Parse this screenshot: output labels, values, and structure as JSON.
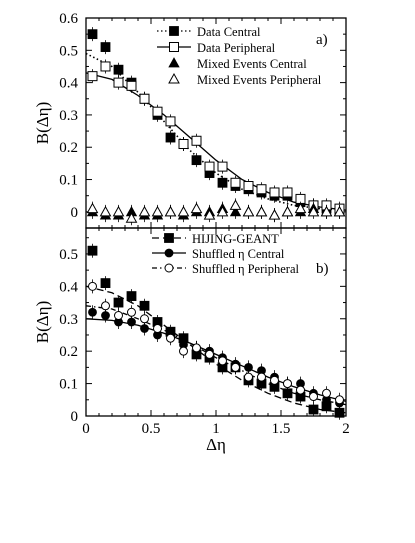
{
  "chart_data": [
    {
      "panel_label": "a)",
      "type": "scatter",
      "ylabel": "B(Δη)",
      "xlabel": "",
      "xlim": [
        0,
        2
      ],
      "ylim": [
        -0.05,
        0.6
      ],
      "x_ticks": [
        "0",
        "0.5",
        "1",
        "1.5",
        "2"
      ],
      "show_x_tick_labels": false,
      "y_ticks": [
        "0",
        "0.1",
        "0.2",
        "0.3",
        "0.4",
        "0.5",
        "0.6"
      ],
      "y_tick_values": [
        0,
        0.1,
        0.2,
        0.3,
        0.4,
        0.5,
        0.6
      ],
      "legend_position": "top-right",
      "series": [
        {
          "name": "Data Central",
          "marker": "square-filled",
          "line": "dotted",
          "x": [
            0.05,
            0.15,
            0.25,
            0.35,
            0.45,
            0.55,
            0.65,
            0.75,
            0.85,
            0.95,
            1.05,
            1.15,
            1.25,
            1.35,
            1.45,
            1.55,
            1.65,
            1.75,
            1.85,
            1.95
          ],
          "y": [
            0.55,
            0.51,
            0.44,
            0.4,
            0.35,
            0.3,
            0.23,
            0.21,
            0.16,
            0.12,
            0.09,
            0.08,
            0.07,
            0.06,
            0.05,
            0.05,
            0.03,
            0.02,
            0.01,
            0.005
          ],
          "fit_x": [
            0,
            0.2,
            0.4,
            0.6,
            0.8,
            1.0,
            1.2,
            1.4,
            1.6,
            1.8,
            2.0
          ],
          "fit_y": [
            0.49,
            0.45,
            0.37,
            0.28,
            0.19,
            0.12,
            0.07,
            0.04,
            0.02,
            0.01,
            0.005
          ]
        },
        {
          "name": "Data Peripheral",
          "marker": "square-open",
          "line": "solid",
          "x": [
            0.05,
            0.15,
            0.25,
            0.35,
            0.45,
            0.55,
            0.65,
            0.75,
            0.85,
            0.95,
            1.05,
            1.15,
            1.25,
            1.35,
            1.45,
            1.55,
            1.65,
            1.75,
            1.85,
            1.95
          ],
          "y": [
            0.42,
            0.45,
            0.4,
            0.39,
            0.35,
            0.31,
            0.28,
            0.21,
            0.22,
            0.14,
            0.14,
            0.09,
            0.08,
            0.07,
            0.06,
            0.06,
            0.04,
            0.02,
            0.02,
            0.01
          ],
          "fit_x": [
            0,
            0.2,
            0.4,
            0.6,
            0.8,
            1.0,
            1.2,
            1.4,
            1.6,
            1.8,
            2.0
          ],
          "fit_y": [
            0.43,
            0.41,
            0.36,
            0.3,
            0.23,
            0.16,
            0.1,
            0.06,
            0.03,
            0.015,
            0.005
          ]
        },
        {
          "name": "Mixed Events Central",
          "marker": "triangle-filled",
          "line": "none",
          "x": [
            0.05,
            0.15,
            0.25,
            0.35,
            0.45,
            0.55,
            0.65,
            0.75,
            0.85,
            0.95,
            1.05,
            1.15,
            1.25,
            1.35,
            1.45,
            1.55,
            1.65,
            1.75,
            1.85,
            1.95
          ],
          "y": [
            0.0,
            -0.01,
            -0.01,
            0.0,
            -0.01,
            -0.01,
            0.0,
            -0.01,
            0.0,
            0.0,
            0.01,
            0.0,
            0.0,
            0.0,
            -0.01,
            0.0,
            0.0,
            0.01,
            0.0,
            0.0
          ]
        },
        {
          "name": "Mixed Events Peripheral",
          "marker": "triangle-open",
          "line": "none",
          "x": [
            0.05,
            0.15,
            0.25,
            0.35,
            0.45,
            0.55,
            0.65,
            0.75,
            0.85,
            0.95,
            1.05,
            1.15,
            1.25,
            1.35,
            1.45,
            1.55,
            1.65,
            1.75,
            1.85,
            1.95
          ],
          "y": [
            0.01,
            0.0,
            0.0,
            -0.02,
            0.0,
            0.0,
            0.0,
            0.0,
            0.01,
            -0.01,
            0.0,
            0.02,
            0.0,
            0.0,
            -0.01,
            0.0,
            0.01,
            0.0,
            0.0,
            0.0
          ]
        }
      ]
    },
    {
      "panel_label": "b)",
      "type": "scatter",
      "ylabel": "B(Δη)",
      "xlabel": "Δη",
      "xlim": [
        0,
        2
      ],
      "ylim": [
        0,
        0.58
      ],
      "x_ticks": [
        "0",
        "0.5",
        "1",
        "1.5",
        "2"
      ],
      "show_x_tick_labels": true,
      "y_ticks": [
        "0",
        "0.1",
        "0.2",
        "0.3",
        "0.4",
        "0.5"
      ],
      "y_tick_values": [
        0,
        0.1,
        0.2,
        0.3,
        0.4,
        0.5
      ],
      "legend_position": "top-right",
      "series": [
        {
          "name": "HIJING-GEANT",
          "marker": "square-filled",
          "line": "dashed",
          "x": [
            0.05,
            0.15,
            0.25,
            0.35,
            0.45,
            0.55,
            0.65,
            0.75,
            0.85,
            0.95,
            1.05,
            1.15,
            1.25,
            1.35,
            1.45,
            1.55,
            1.65,
            1.75,
            1.85,
            1.95
          ],
          "y": [
            0.51,
            0.41,
            0.35,
            0.37,
            0.34,
            0.29,
            0.26,
            0.24,
            0.19,
            0.18,
            0.15,
            0.15,
            0.11,
            0.1,
            0.09,
            0.07,
            0.06,
            0.02,
            0.03,
            0.01
          ],
          "fit_x": [
            0,
            0.2,
            0.4,
            0.6,
            0.8,
            1.0,
            1.2,
            1.4,
            1.6,
            1.8,
            2.0
          ],
          "fit_y": [
            0.4,
            0.38,
            0.34,
            0.28,
            0.22,
            0.16,
            0.11,
            0.07,
            0.04,
            0.02,
            0.01
          ]
        },
        {
          "name": "Shuffled η Central",
          "marker": "circle-filled",
          "line": "solid",
          "x": [
            0.05,
            0.15,
            0.25,
            0.35,
            0.45,
            0.55,
            0.65,
            0.75,
            0.85,
            0.95,
            1.05,
            1.15,
            1.25,
            1.35,
            1.45,
            1.55,
            1.65,
            1.75,
            1.85,
            1.95
          ],
          "y": [
            0.32,
            0.31,
            0.29,
            0.29,
            0.27,
            0.25,
            0.25,
            0.22,
            0.21,
            0.2,
            0.18,
            0.16,
            0.15,
            0.14,
            0.12,
            0.1,
            0.1,
            0.07,
            0.05,
            0.04
          ],
          "fit_x": [
            0,
            0.2,
            0.4,
            0.6,
            0.8,
            1.0,
            1.2,
            1.4,
            1.6,
            1.8,
            2.0
          ],
          "fit_y": [
            0.3,
            0.295,
            0.28,
            0.255,
            0.225,
            0.19,
            0.155,
            0.12,
            0.09,
            0.065,
            0.045
          ]
        },
        {
          "name": "Shuffled η Peripheral",
          "marker": "circle-open",
          "line": "dash-dot",
          "x": [
            0.05,
            0.15,
            0.25,
            0.35,
            0.45,
            0.55,
            0.65,
            0.75,
            0.85,
            0.95,
            1.05,
            1.15,
            1.25,
            1.35,
            1.45,
            1.55,
            1.65,
            1.75,
            1.85,
            1.95
          ],
          "y": [
            0.4,
            0.34,
            0.31,
            0.32,
            0.3,
            0.27,
            0.24,
            0.2,
            0.21,
            0.19,
            0.17,
            0.15,
            0.12,
            0.12,
            0.11,
            0.1,
            0.08,
            0.06,
            0.07,
            0.05
          ],
          "fit_x": [
            0,
            0.2,
            0.4,
            0.6,
            0.8,
            1.0,
            1.2,
            1.4,
            1.6,
            1.8,
            2.0
          ],
          "fit_y": [
            0.34,
            0.33,
            0.3,
            0.265,
            0.225,
            0.18,
            0.14,
            0.1,
            0.07,
            0.05,
            0.035
          ]
        }
      ]
    }
  ]
}
